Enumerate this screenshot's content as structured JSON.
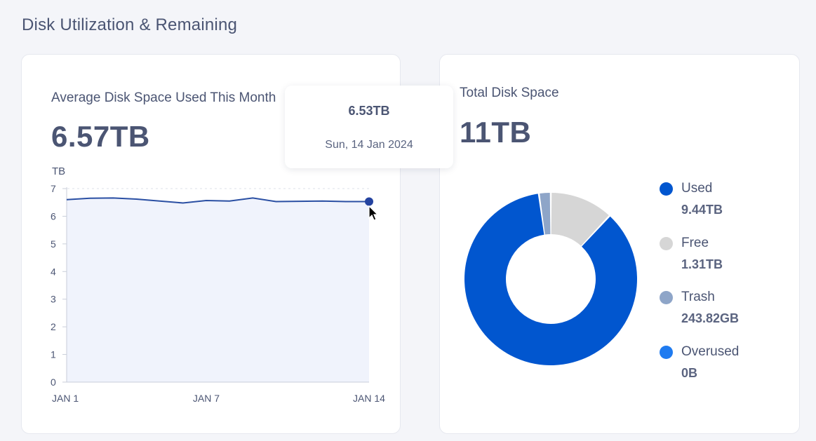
{
  "page_title": "Disk Utilization & Remaining",
  "left_card": {
    "label": "Average Disk Space Used This Month",
    "value": "6.57TB"
  },
  "tooltip": {
    "value": "6.53TB",
    "date": "Sun, 14 Jan 2024"
  },
  "right_card": {
    "label": "Total Disk Space",
    "value": "11TB"
  },
  "legend": [
    {
      "name": "Used",
      "value": "9.44TB",
      "color": "#0156cf"
    },
    {
      "name": "Free",
      "value": "1.31TB",
      "color": "#d6d6d6"
    },
    {
      "name": "Trash",
      "value": "243.82GB",
      "color": "#8ea5c8"
    },
    {
      "name": "Overused",
      "value": "0B",
      "color": "#1f7bf0"
    }
  ],
  "colors": {
    "line": "#2a4fa3",
    "area": "#f0f3fc",
    "grid": "#dde1ea",
    "accent": "#0156cf"
  },
  "chart_data": [
    {
      "type": "area",
      "ylabel": "TB",
      "ylim": [
        0,
        7
      ],
      "yticks": [
        "0",
        "1",
        "2",
        "3",
        "4",
        "5",
        "6",
        "7"
      ],
      "xticks": [
        "JAN 1",
        "JAN 7",
        "JAN 14"
      ],
      "x": [
        1,
        2,
        3,
        4,
        5,
        6,
        7,
        8,
        9,
        10,
        11,
        12,
        13,
        14
      ],
      "values": [
        6.6,
        6.65,
        6.66,
        6.62,
        6.55,
        6.48,
        6.57,
        6.55,
        6.66,
        6.53,
        6.54,
        6.55,
        6.53,
        6.53
      ],
      "series": [
        {
          "name": "",
          "values": [
            6.6,
            6.65,
            6.66,
            6.62,
            6.55,
            6.48,
            6.57,
            6.55,
            6.66,
            6.53,
            6.54,
            6.55,
            6.53,
            6.53
          ]
        }
      ],
      "grid": false,
      "highlight_index": 13
    },
    {
      "type": "pie",
      "categories": [
        "Used",
        "Free",
        "Trash",
        "Overused"
      ],
      "values": [
        9.44,
        1.31,
        0.24382,
        0
      ],
      "units": [
        "TB",
        "TB",
        "TB",
        "TB"
      ],
      "donut": true
    }
  ]
}
